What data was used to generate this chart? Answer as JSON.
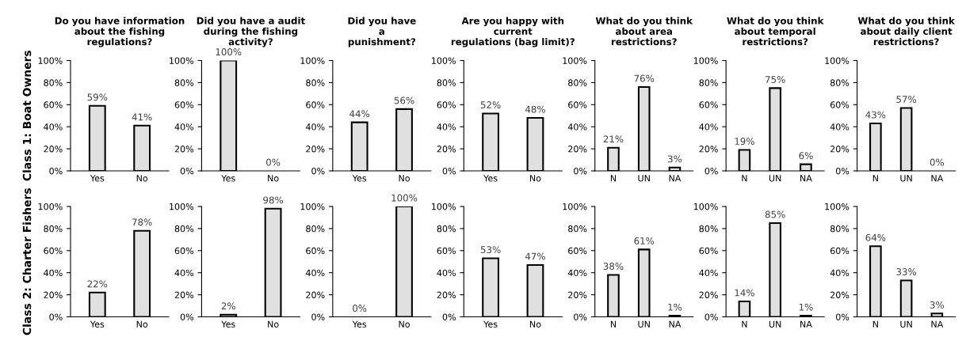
{
  "chart_data": [
    {
      "type": "bar",
      "title": "Do you have information\nabout the fishing\nregulations?",
      "ylabel": "Class 1: Boat Owners",
      "categories": [
        "Yes",
        "No"
      ],
      "values": [
        59,
        41
      ],
      "value_labels": [
        "59%",
        "41%"
      ],
      "color": "#e0e0e0",
      "ylim": [
        0,
        100
      ],
      "yticks": [
        {
          "value": 0,
          "label": "0%"
        },
        {
          "value": 20,
          "label": "20%"
        },
        {
          "value": 40,
          "label": "40%"
        },
        {
          "value": 60,
          "label": "60%"
        },
        {
          "value": 80,
          "label": "80%"
        },
        {
          "value": 100,
          "label": "100%"
        }
      ]
    },
    {
      "type": "bar",
      "title": "Did you have a audit\nduring the fishing\nactivity?",
      "categories": [
        "Yes",
        "No"
      ],
      "values": [
        100,
        0
      ],
      "value_labels": [
        "100%",
        "0%"
      ],
      "color": "#e0e0e0",
      "ylim": [
        0,
        100
      ],
      "yticks": [
        {
          "value": 0,
          "label": "0%"
        },
        {
          "value": 20,
          "label": "20%"
        },
        {
          "value": 40,
          "label": "40%"
        },
        {
          "value": 60,
          "label": "60%"
        },
        {
          "value": 80,
          "label": "80%"
        },
        {
          "value": 100,
          "label": "100%"
        }
      ]
    },
    {
      "type": "bar",
      "title": "Did you have\na\npunishment?",
      "categories": [
        "Yes",
        "No"
      ],
      "values": [
        44,
        56
      ],
      "value_labels": [
        "44%",
        "56%"
      ],
      "color": "#e0e0e0",
      "ylim": [
        0,
        100
      ],
      "yticks": [
        {
          "value": 0,
          "label": "0%"
        },
        {
          "value": 20,
          "label": "20%"
        },
        {
          "value": 40,
          "label": "40%"
        },
        {
          "value": 60,
          "label": "60%"
        },
        {
          "value": 80,
          "label": "80%"
        },
        {
          "value": 100,
          "label": "100%"
        }
      ]
    },
    {
      "type": "bar",
      "title": "Are you happy with\ncurrent\nregulations (bag limit)?",
      "categories": [
        "Yes",
        "No"
      ],
      "values": [
        52,
        48
      ],
      "value_labels": [
        "52%",
        "48%"
      ],
      "color": "#e0e0e0",
      "ylim": [
        0,
        100
      ],
      "yticks": [
        {
          "value": 0,
          "label": "0%"
        },
        {
          "value": 20,
          "label": "20%"
        },
        {
          "value": 40,
          "label": "40%"
        },
        {
          "value": 60,
          "label": "60%"
        },
        {
          "value": 80,
          "label": "80%"
        },
        {
          "value": 100,
          "label": "100%"
        }
      ]
    },
    {
      "type": "bar",
      "title": "What do you think\nabout area\nrestrictions?",
      "categories": [
        "N",
        "UN",
        "NA"
      ],
      "values": [
        21,
        76,
        3
      ],
      "value_labels": [
        "21%",
        "76%",
        "3%"
      ],
      "color": "#e0e0e0",
      "ylim": [
        0,
        100
      ],
      "yticks": [
        {
          "value": 0,
          "label": "0%"
        },
        {
          "value": 20,
          "label": "20%"
        },
        {
          "value": 40,
          "label": "40%"
        },
        {
          "value": 60,
          "label": "60%"
        },
        {
          "value": 80,
          "label": "80%"
        },
        {
          "value": 100,
          "label": "100%"
        }
      ]
    },
    {
      "type": "bar",
      "title": "What do you think\nabout temporal\nrestrictions?",
      "categories": [
        "N",
        "UN",
        "NA"
      ],
      "values": [
        19,
        75,
        6
      ],
      "value_labels": [
        "19%",
        "75%",
        "6%"
      ],
      "color": "#e0e0e0",
      "ylim": [
        0,
        100
      ],
      "yticks": [
        {
          "value": 0,
          "label": "0%"
        },
        {
          "value": 20,
          "label": "20%"
        },
        {
          "value": 40,
          "label": "40%"
        },
        {
          "value": 60,
          "label": "60%"
        },
        {
          "value": 80,
          "label": "80%"
        },
        {
          "value": 100,
          "label": "100%"
        }
      ]
    },
    {
      "type": "bar",
      "title": "What do you think\nabout daily client\nrestrictions?",
      "categories": [
        "N",
        "UN",
        "NA"
      ],
      "values": [
        43,
        57,
        0
      ],
      "value_labels": [
        "43%",
        "57%",
        "0%"
      ],
      "color": "#e0e0e0",
      "ylim": [
        0,
        100
      ],
      "yticks": [
        {
          "value": 0,
          "label": "0%"
        },
        {
          "value": 20,
          "label": "20%"
        },
        {
          "value": 40,
          "label": "40%"
        },
        {
          "value": 60,
          "label": "60%"
        },
        {
          "value": 80,
          "label": "80%"
        },
        {
          "value": 100,
          "label": "100%"
        }
      ]
    },
    {
      "type": "bar",
      "ylabel": "Class 2: Charter Fishers",
      "categories": [
        "Yes",
        "No"
      ],
      "values": [
        22,
        78
      ],
      "value_labels": [
        "22%",
        "78%"
      ],
      "color": "#e0e0e0",
      "ylim": [
        0,
        100
      ],
      "yticks": [
        {
          "value": 0,
          "label": "0%"
        },
        {
          "value": 20,
          "label": "20%"
        },
        {
          "value": 40,
          "label": "40%"
        },
        {
          "value": 60,
          "label": "60%"
        },
        {
          "value": 80,
          "label": "80%"
        },
        {
          "value": 100,
          "label": "100%"
        }
      ]
    },
    {
      "type": "bar",
      "categories": [
        "Yes",
        "No"
      ],
      "values": [
        2,
        98
      ],
      "value_labels": [
        "2%",
        "98%"
      ],
      "color": "#e0e0e0",
      "ylim": [
        0,
        100
      ],
      "yticks": [
        {
          "value": 0,
          "label": "0%"
        },
        {
          "value": 20,
          "label": "20%"
        },
        {
          "value": 40,
          "label": "40%"
        },
        {
          "value": 60,
          "label": "60%"
        },
        {
          "value": 80,
          "label": "80%"
        },
        {
          "value": 100,
          "label": "100%"
        }
      ]
    },
    {
      "type": "bar",
      "categories": [
        "Yes",
        "No"
      ],
      "values": [
        0,
        100
      ],
      "value_labels": [
        "0%",
        "100%"
      ],
      "color": "#e0e0e0",
      "ylim": [
        0,
        100
      ],
      "yticks": [
        {
          "value": 0,
          "label": "0%"
        },
        {
          "value": 20,
          "label": "20%"
        },
        {
          "value": 40,
          "label": "40%"
        },
        {
          "value": 60,
          "label": "60%"
        },
        {
          "value": 80,
          "label": "80%"
        },
        {
          "value": 100,
          "label": "100%"
        }
      ]
    },
    {
      "type": "bar",
      "categories": [
        "Yes",
        "No"
      ],
      "values": [
        53,
        47
      ],
      "value_labels": [
        "53%",
        "47%"
      ],
      "color": "#e0e0e0",
      "ylim": [
        0,
        100
      ],
      "yticks": [
        {
          "value": 0,
          "label": "0%"
        },
        {
          "value": 20,
          "label": "20%"
        },
        {
          "value": 40,
          "label": "40%"
        },
        {
          "value": 60,
          "label": "60%"
        },
        {
          "value": 80,
          "label": "80%"
        },
        {
          "value": 100,
          "label": "100%"
        }
      ]
    },
    {
      "type": "bar",
      "categories": [
        "N",
        "UN",
        "NA"
      ],
      "values": [
        38,
        61,
        1
      ],
      "value_labels": [
        "38%",
        "61%",
        "1%"
      ],
      "color": "#e0e0e0",
      "ylim": [
        0,
        100
      ],
      "yticks": [
        {
          "value": 0,
          "label": "0%"
        },
        {
          "value": 20,
          "label": "20%"
        },
        {
          "value": 40,
          "label": "40%"
        },
        {
          "value": 60,
          "label": "60%"
        },
        {
          "value": 80,
          "label": "80%"
        },
        {
          "value": 100,
          "label": "100%"
        }
      ]
    },
    {
      "type": "bar",
      "categories": [
        "N",
        "UN",
        "NA"
      ],
      "values": [
        14,
        85,
        1
      ],
      "value_labels": [
        "14%",
        "85%",
        "1%"
      ],
      "color": "#e0e0e0",
      "ylim": [
        0,
        100
      ],
      "yticks": [
        {
          "value": 0,
          "label": "0%"
        },
        {
          "value": 20,
          "label": "20%"
        },
        {
          "value": 40,
          "label": "40%"
        },
        {
          "value": 60,
          "label": "60%"
        },
        {
          "value": 80,
          "label": "80%"
        },
        {
          "value": 100,
          "label": "100%"
        }
      ]
    },
    {
      "type": "bar",
      "categories": [
        "N",
        "UN",
        "NA"
      ],
      "values": [
        64,
        33,
        3
      ],
      "value_labels": [
        "64%",
        "33%",
        "3%"
      ],
      "color": "#e0e0e0",
      "ylim": [
        0,
        100
      ],
      "yticks": [
        {
          "value": 0,
          "label": "0%"
        },
        {
          "value": 20,
          "label": "20%"
        },
        {
          "value": 40,
          "label": "40%"
        },
        {
          "value": 60,
          "label": "60%"
        },
        {
          "value": 80,
          "label": "80%"
        },
        {
          "value": 100,
          "label": "100%"
        }
      ]
    }
  ]
}
